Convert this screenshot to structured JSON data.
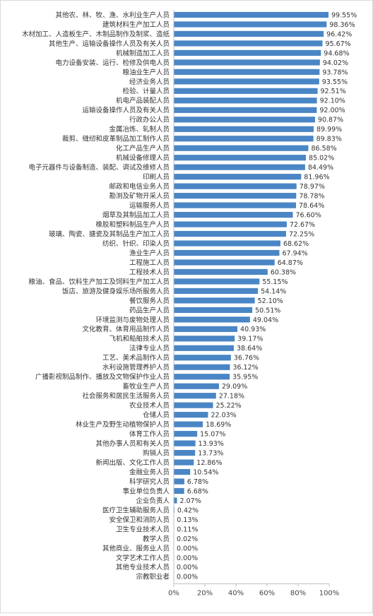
{
  "chart_data": {
    "type": "bar",
    "orientation": "horizontal",
    "bar_color": "#4a86c5",
    "axis_color": "#bfbfbf",
    "categories": [
      "其他农、林、牧、渔、水利业生产人员",
      "建筑材料生产加工人员",
      "木材加工、人造板生产、木制品制作及制浆、造纸",
      "其他生产、运输设备操作人员及有关人员",
      "机械制造加工人员",
      "电力设备安装、运行、检修及供电人员",
      "粮油业生产人员",
      "经济业务人员",
      "检验、计量人员",
      "机电产品装配人员",
      "运输设备操作人员及有关人员",
      "行政办公人员",
      "金属冶炼、轧制人员",
      "裁剪、缝纫和皮革制品加工制作人员",
      "化工产品生产人员",
      "机械设备修理人员",
      "电子元器件与设备制造、装配、调试及维修人员",
      "印刷人员",
      "邮政和电信业务人员",
      "勘测及矿物开采人员",
      "运输服务人员",
      "烟草及其制品加工人员",
      "橡胶和塑料制品生产人员",
      "玻璃、陶瓷、搪瓷及其制品生产加工人员",
      "纺织、针织、印染人员",
      "渔业生产人员",
      "工程施工人员",
      "工程技术人员",
      "粮油、食品、饮料生产加工及饲料生产加工人员",
      "饭店、旅游及健身娱乐场所服务人员",
      "餐饮服务人员",
      "药品生产人员",
      "环境监测与废物处理人员",
      "文化教育、体育用品制作人员",
      "飞机和船舶技术人员",
      "法律专业人员",
      "工艺、美术品制作人员",
      "水利设施管理养护人员",
      "广播影视制品制作、播放及文物保护作业人员",
      "畜牧业生产人员",
      "社会服务和居民生活服务人员",
      "农业技术人员",
      "仓储人员",
      "林业生产及野生动植物保护人员",
      "体育工作人员",
      "其他办事人员和有关人员",
      "购销人员",
      "新闻出版、文化工作人员",
      "金融业务人员",
      "科学研究人员",
      "事业单位负责人",
      "企业负责人",
      "医疗卫生辅助服务人员",
      "安全保卫和消防人员",
      "卫生专业技术人员",
      "教学人员",
      "其他商业、服务业人员",
      "文学艺术工作人员",
      "其他专业技术人员",
      "宗教职业者"
    ],
    "values": [
      99.55,
      98.36,
      96.42,
      95.67,
      94.68,
      94.02,
      93.78,
      93.55,
      92.51,
      92.1,
      92.0,
      90.87,
      89.99,
      89.83,
      86.58,
      85.02,
      84.49,
      81.96,
      78.97,
      78.78,
      78.64,
      76.6,
      72.67,
      72.25,
      68.62,
      67.94,
      64.87,
      60.38,
      55.15,
      54.14,
      52.1,
      50.51,
      49.04,
      40.93,
      39.17,
      38.64,
      36.76,
      36.12,
      35.95,
      29.09,
      27.18,
      25.22,
      22.03,
      18.69,
      15.07,
      13.93,
      13.73,
      12.86,
      10.54,
      6.78,
      6.68,
      2.07,
      0.42,
      0.13,
      0.11,
      0.02,
      0.0,
      0.0,
      0.0,
      0.0
    ],
    "value_labels": [
      "99.55%",
      "98.36%",
      "96.42%",
      "95.67%",
      "94.68%",
      "94.02%",
      "93.78%",
      "93.55%",
      "92.51%",
      "92.10%",
      "92.00%",
      "90.87%",
      "89.99%",
      "89.83%",
      "86.58%",
      "85.02%",
      "84.49%",
      "81.96%",
      "78.97%",
      "78.78%",
      "78.64%",
      "76.60%",
      "72.67%",
      "72.25%",
      "68.62%",
      "67.94%",
      "64.87%",
      "60.38%",
      "55.15%",
      "54.14%",
      "52.10%",
      "50.51%",
      "49.04%",
      "40.93%",
      "39.17%",
      "38.64%",
      "36.76%",
      "36.12%",
      "35.95%",
      "29.09%",
      "27.18%",
      "25.22%",
      "22.03%",
      "18.69%",
      "15.07%",
      "13.93%",
      "13.73%",
      "12.86%",
      "10.54%",
      "6.78%",
      "6.68%",
      "2.07%",
      "0.42%",
      "0.13%",
      "0.11%",
      "0.02%",
      "0.00%",
      "0.00%",
      "0.00%",
      "0.00%"
    ],
    "xlim": [
      0,
      100
    ],
    "x_ticks": [
      0,
      20,
      40,
      60,
      80,
      100
    ],
    "x_tick_labels": [
      "0%",
      "20%",
      "40%",
      "60%",
      "80%",
      "100%"
    ],
    "grid": false,
    "title": "",
    "xlabel": "",
    "ylabel": ""
  }
}
